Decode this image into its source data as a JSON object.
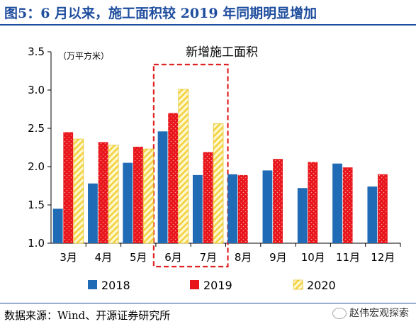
{
  "figure": {
    "title": "图5：6 月以来，施工面积较 2019 年同期明显增加",
    "source": "数据来源：Wind、开源证券研究所",
    "watermark": "赵伟宏观探索"
  },
  "colors": {
    "s2018": "#1f6bb5",
    "s2019": "#e8151b",
    "s2020_fill": "#fff7cc",
    "s2020_stripe": "#f2d13c",
    "highlight": "#e02020",
    "title": "#1f4e9e"
  },
  "chart_data": {
    "type": "bar",
    "title": "新增施工面积",
    "unit": "（万平方米）",
    "categories": [
      "3月",
      "4月",
      "5月",
      "6月",
      "7月",
      "8月",
      "9月",
      "10月",
      "11月",
      "12月"
    ],
    "series": [
      {
        "name": "2018",
        "values": [
          1.45,
          1.78,
          2.05,
          2.46,
          1.89,
          1.9,
          1.95,
          1.72,
          2.04,
          1.74
        ]
      },
      {
        "name": "2019",
        "values": [
          2.45,
          2.32,
          2.26,
          2.7,
          2.19,
          1.89,
          2.1,
          2.06,
          1.99,
          1.9
        ]
      },
      {
        "name": "2020",
        "values": [
          2.36,
          2.28,
          2.23,
          3.01,
          2.56,
          null,
          null,
          null,
          null,
          null
        ]
      }
    ],
    "ylim": [
      1.0,
      3.5
    ],
    "yticks": [
      "1.0",
      "1.5",
      "2.0",
      "2.5",
      "3.0",
      "3.5"
    ],
    "yticks_values": [
      1.0,
      1.5,
      2.0,
      2.5,
      3.0,
      3.5
    ],
    "grid": false,
    "legend_position": "bottom",
    "highlight_categories": [
      "6月",
      "7月"
    ]
  }
}
